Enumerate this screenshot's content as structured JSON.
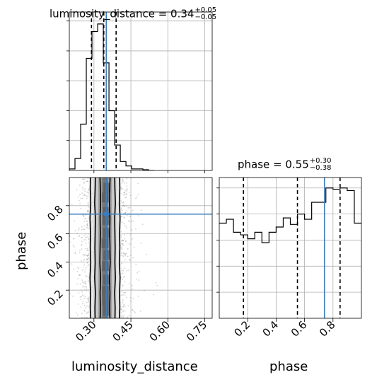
{
  "chart_data": {
    "type": "corner",
    "truth_color": "#3a7dbf",
    "parameters": [
      {
        "name": "luminosity_distance",
        "label": "luminosity_distance",
        "range": [
          0.2,
          0.78
        ],
        "ticks": [
          0.3,
          0.45,
          0.6,
          0.75
        ],
        "tick_labels": [
          "0.30",
          "0.45",
          "0.60",
          "0.75"
        ],
        "truth": 0.35,
        "quantiles": [
          0.29,
          0.34,
          0.39
        ],
        "title": {
          "prefix": "luminosity_distance = 0.34",
          "plus": "+0.05",
          "minus": "−0.05"
        }
      },
      {
        "name": "phase",
        "label": "phase",
        "range": [
          0.0,
          1.0
        ],
        "ticks": [
          0.2,
          0.4,
          0.6,
          0.8
        ],
        "tick_labels": [
          "0.2",
          "0.4",
          "0.6",
          "0.8"
        ],
        "truth": 0.74,
        "quantiles": [
          0.17,
          0.55,
          0.85
        ],
        "title": {
          "prefix": "phase = 0.55",
          "plus": "+0.30",
          "minus": "−0.38"
        }
      }
    ],
    "hist_luminosity_distance": {
      "bin_edges": [
        0.2,
        0.223,
        0.246,
        0.269,
        0.292,
        0.315,
        0.338,
        0.361,
        0.384,
        0.407,
        0.43,
        0.453,
        0.476,
        0.499,
        0.522,
        0.545
      ],
      "counts": [
        0.01,
        0.08,
        0.31,
        0.75,
        0.93,
        0.98,
        0.72,
        0.4,
        0.17,
        0.06,
        0.03,
        0.01,
        0.01,
        0.005,
        0.0
      ]
    },
    "hist_phase": {
      "bin_edges": [
        0.0,
        0.05,
        0.1,
        0.15,
        0.2,
        0.25,
        0.3,
        0.35,
        0.4,
        0.45,
        0.5,
        0.55,
        0.6,
        0.65,
        0.7,
        0.75,
        0.8,
        0.85,
        0.9,
        0.95,
        1.0
      ],
      "counts": [
        0.73,
        0.76,
        0.66,
        0.64,
        0.61,
        0.66,
        0.58,
        0.66,
        0.7,
        0.77,
        0.72,
        0.8,
        0.76,
        0.89,
        0.89,
        1.0,
        0.99,
        1.0,
        0.98,
        0.73
      ]
    },
    "scatter_2d": {
      "x_center": 0.345,
      "x_sigma": 0.045,
      "y_range": [
        0.0,
        1.0
      ],
      "contour_levels": [
        {
          "label": "inner",
          "half_widths": [
            0.02,
            0.019,
            0.02,
            0.018,
            0.021,
            0.02,
            0.019,
            0.02,
            0.018,
            0.019,
            0.021
          ]
        },
        {
          "label": "middle",
          "half_widths": [
            0.04,
            0.041,
            0.039,
            0.042,
            0.04,
            0.041,
            0.04,
            0.039,
            0.042,
            0.04,
            0.039
          ]
        },
        {
          "label": "outer",
          "half_widths": [
            0.058,
            0.06,
            0.059,
            0.061,
            0.058,
            0.06,
            0.059,
            0.061,
            0.058,
            0.06,
            0.059
          ]
        }
      ]
    }
  }
}
